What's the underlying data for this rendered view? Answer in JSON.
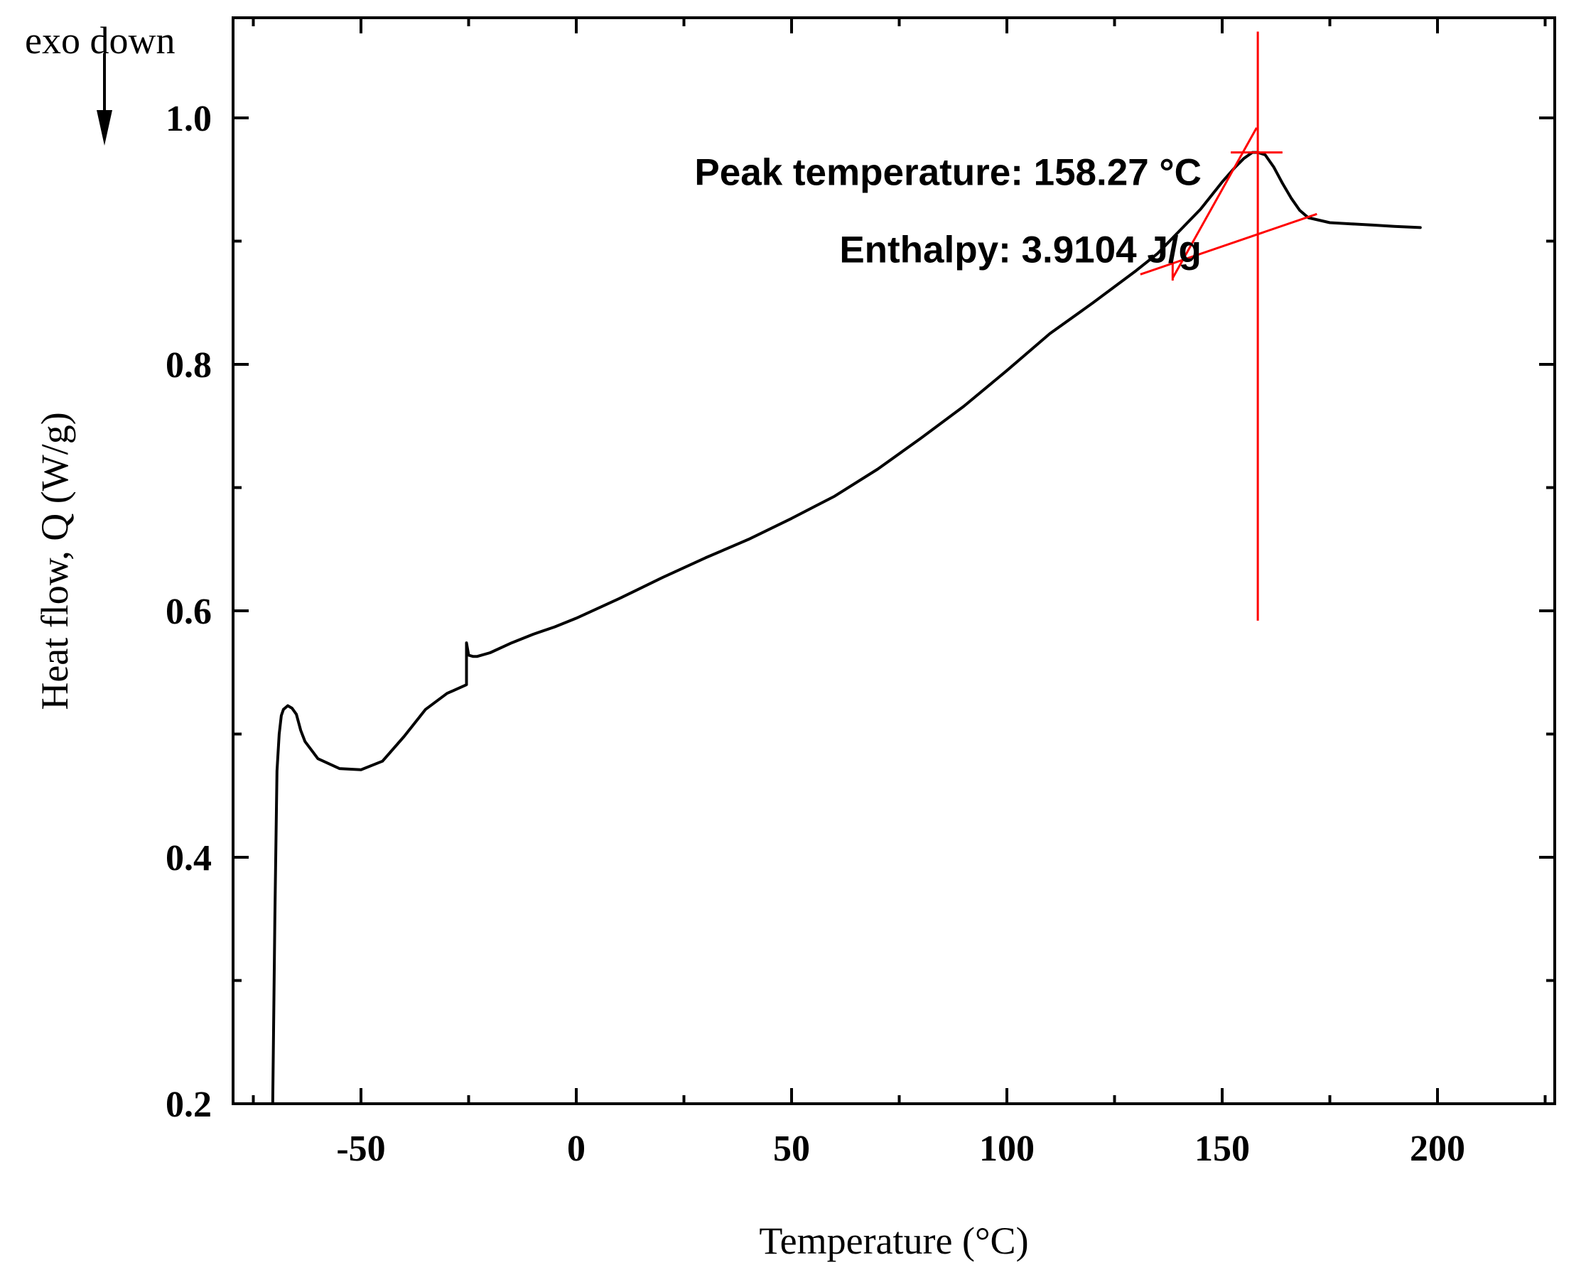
{
  "chart_data": {
    "type": "line",
    "title": "",
    "xlabel": "Temperature (°C)",
    "ylabel": "Heat flow, Q (W/g)",
    "xlim": [
      -80,
      225
    ],
    "ylim": [
      0.2,
      1.08
    ],
    "x_ticks": [
      -50,
      0,
      50,
      100,
      150,
      200
    ],
    "x_tick_labels": [
      "-50",
      "0",
      "50",
      "100",
      "150",
      "200"
    ],
    "x_minor_ticks": [
      -75,
      -25,
      25,
      75,
      125,
      175,
      225
    ],
    "y_ticks": [
      0.2,
      0.4,
      0.6,
      0.8,
      1.0
    ],
    "y_tick_labels": [
      "0.2",
      "0.4",
      "0.6",
      "0.8",
      "1.0"
    ],
    "y_minor_ticks": [
      0.3,
      0.5,
      0.7,
      0.9
    ],
    "grid": false,
    "direction_note": "exo down",
    "series": [
      {
        "name": "Heat flow",
        "color": "#000000",
        "x": [
          -70.5,
          -70,
          -69.5,
          -69,
          -68.5,
          -68,
          -67,
          -66,
          -65,
          -64,
          -63,
          -60,
          -55,
          -50,
          -45,
          -40,
          -35,
          -30,
          -25.5,
          -25.5,
          -25,
          -24,
          -23,
          -20,
          -15,
          -10,
          -5,
          0,
          10,
          20,
          30,
          40,
          50,
          60,
          70,
          80,
          90,
          100,
          110,
          120,
          130,
          135,
          140,
          145,
          150,
          153,
          155,
          157,
          158.3,
          160,
          162,
          164,
          166,
          168,
          170,
          175,
          180,
          185,
          190,
          196
        ],
        "y": [
          0.2,
          0.35,
          0.47,
          0.5,
          0.515,
          0.52,
          0.523,
          0.521,
          0.516,
          0.503,
          0.494,
          0.48,
          0.472,
          0.471,
          0.478,
          0.498,
          0.52,
          0.533,
          0.54,
          0.574,
          0.564,
          0.563,
          0.563,
          0.566,
          0.574,
          0.581,
          0.587,
          0.594,
          0.61,
          0.627,
          0.643,
          0.658,
          0.675,
          0.693,
          0.715,
          0.74,
          0.766,
          0.795,
          0.825,
          0.85,
          0.876,
          0.89,
          0.908,
          0.926,
          0.948,
          0.96,
          0.967,
          0.972,
          0.972,
          0.97,
          0.96,
          0.947,
          0.935,
          0.925,
          0.919,
          0.915,
          0.914,
          0.913,
          0.912,
          0.911
        ]
      }
    ],
    "analysis": {
      "color": "#ff0000",
      "peak_temperature": 158.27,
      "peak_line_ylim": [
        0.592,
        1.07
      ],
      "baseline": {
        "x": [
          131,
          172
        ],
        "y": [
          0.873,
          0.922
        ]
      },
      "onset_tangent": {
        "x": [
          138.5,
          158
        ],
        "y": [
          0.87,
          0.992
        ]
      },
      "onset_marker": {
        "x": 138.5,
        "y": [
          0.868,
          0.882
        ]
      },
      "peak_marker": {
        "x": [
          152,
          164
        ],
        "y": 0.972
      }
    },
    "annotations": [
      {
        "text": "Peak temperature: 158.27 °C",
        "x": 132,
        "y": 0.956
      },
      {
        "text": "Enthalpy: 3.9104 J/g",
        "x": 132,
        "y": 0.893
      }
    ]
  }
}
